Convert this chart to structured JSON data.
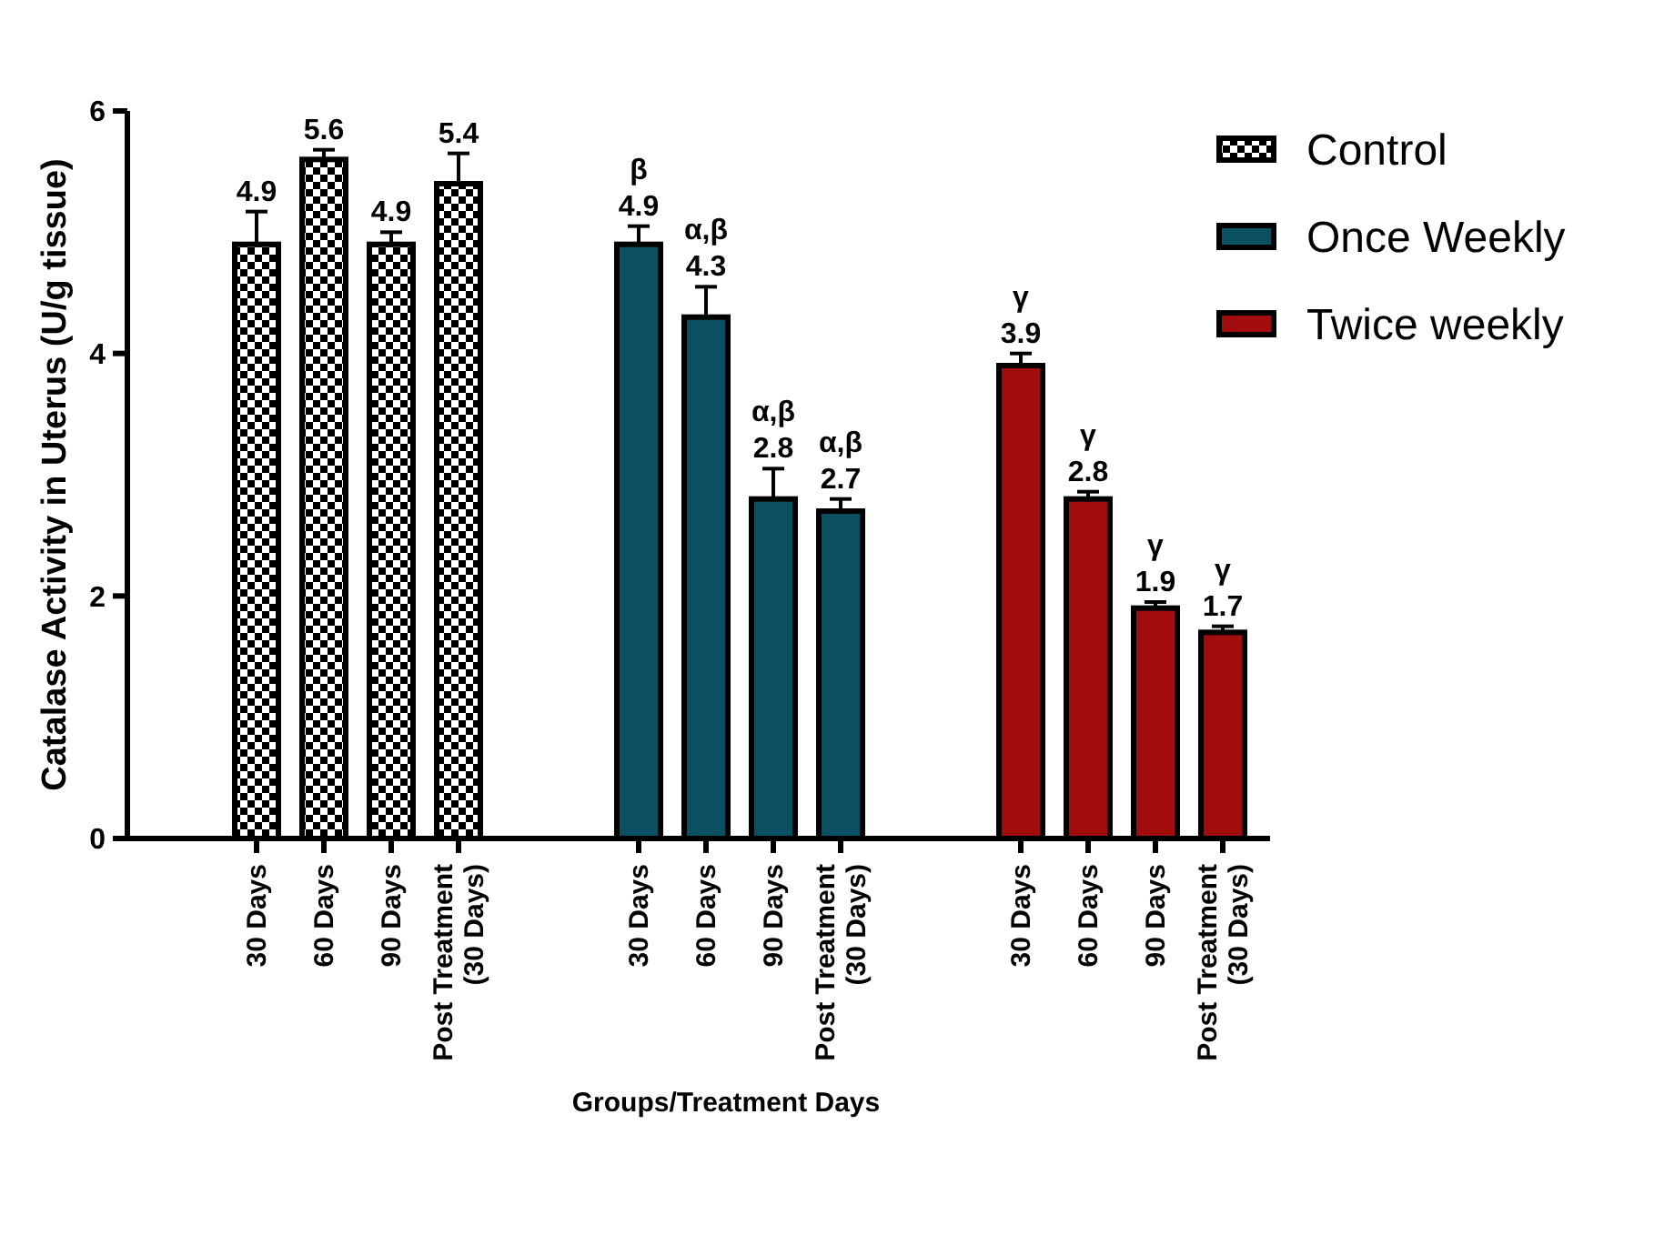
{
  "chart_data": {
    "type": "bar",
    "xlabel": "Groups/Treatment Days",
    "ylabel": "Catalase Activity in Uterus (U/g tissue)",
    "categories": [
      "30 Days",
      "60 Days",
      "90 Days",
      "Post Treatment\n(30 Days)",
      "30 Days",
      "60 Days",
      "90 Days",
      "Post Treatment\n(30 Days)",
      "30 Days",
      "60 Days",
      "90 Days",
      "Post Treatment\n(30 Days)"
    ],
    "series": [
      {
        "name": "Control",
        "color": "#000000",
        "values": [
          4.9,
          5.6,
          4.9,
          5.4,
          null,
          null,
          null,
          null,
          null,
          null,
          null,
          null
        ],
        "errors": [
          0.27,
          0.08,
          0.1,
          0.25,
          null,
          null,
          null,
          null,
          null,
          null,
          null,
          null
        ],
        "value_labels": [
          "4.9",
          "5.6",
          "4.9",
          "5.4",
          null,
          null,
          null,
          null,
          null,
          null,
          null,
          null
        ]
      },
      {
        "name": "Once Weekly",
        "color": "#0b4f63",
        "values": [
          null,
          null,
          null,
          null,
          4.9,
          4.3,
          2.8,
          2.7,
          null,
          null,
          null,
          null
        ],
        "errors": [
          null,
          null,
          null,
          null,
          0.15,
          0.25,
          0.25,
          0.1,
          null,
          null,
          null,
          null
        ],
        "value_labels": [
          null,
          null,
          null,
          null,
          "β\n4.9",
          "α,β\n4.3",
          "α,β\n2.8",
          "α,β\n2.7",
          null,
          null,
          null,
          null
        ]
      },
      {
        "name": "Twice weekly",
        "color": "#a10d0d",
        "values": [
          null,
          null,
          null,
          null,
          null,
          null,
          null,
          null,
          3.9,
          2.8,
          1.9,
          1.7
        ],
        "errors": [
          null,
          null,
          null,
          null,
          null,
          null,
          null,
          null,
          0.1,
          0.06,
          0.05,
          0.05
        ],
        "value_labels": [
          null,
          null,
          null,
          null,
          null,
          null,
          null,
          null,
          "γ\n3.9",
          "γ\n2.8",
          "γ\n1.9",
          "γ\n1.7"
        ]
      }
    ],
    "ylim": [
      0,
      6
    ],
    "yticks": [
      0,
      2,
      4,
      6
    ],
    "legend": "top right"
  }
}
